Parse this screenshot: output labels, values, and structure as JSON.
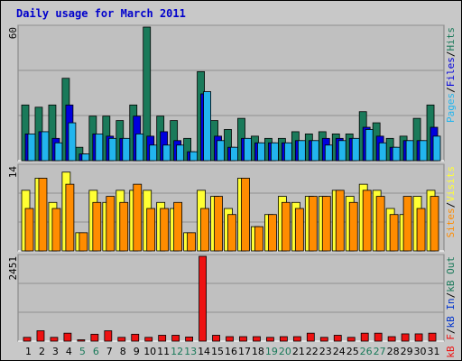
{
  "window": {
    "title": "Daily usage for March 2011"
  },
  "colors": {
    "background": "#c8c8c8",
    "panel": "#c0c0c0",
    "hits": "#1a7a5a",
    "files": "#0000dd",
    "pages": "#22b5ee",
    "visits": "#ffff33",
    "sites": "#ff8c00",
    "kbin": "#0033cc",
    "kbout": "#1a7a5a",
    "kbf": "#ee1111",
    "weekend_label": "#1a7a5a",
    "weekday_label": "#000000",
    "title": "#0000cc"
  },
  "chart_data": [
    {
      "type": "bar",
      "panel": "hits-files-pages",
      "ymax_label": "60",
      "ylim": [
        0,
        60
      ],
      "grid": true,
      "legend": {
        "placement": "right-vertical",
        "parts": [
          "Pages",
          "/",
          "Files",
          "/",
          "Hits"
        ]
      },
      "categories": [
        "1",
        "2",
        "3",
        "4",
        "5",
        "6",
        "7",
        "8",
        "9",
        "10",
        "11",
        "12",
        "13",
        "14",
        "15",
        "16",
        "17",
        "18",
        "19",
        "20",
        "21",
        "22",
        "23",
        "24",
        "25",
        "26",
        "27",
        "28",
        "29",
        "30",
        "31"
      ],
      "weekend_days": [
        "5",
        "6",
        "12",
        "13",
        "19",
        "20",
        "26",
        "27"
      ],
      "series": [
        {
          "name": "Hits",
          "values": [
            25,
            24,
            25,
            37,
            6,
            20,
            20,
            18,
            25,
            60,
            20,
            18,
            10,
            40,
            18,
            14,
            19,
            11,
            10,
            10,
            13,
            12,
            13,
            12,
            12,
            22,
            17,
            10,
            11,
            19,
            25
          ]
        },
        {
          "name": "Files",
          "values": [
            12,
            13,
            10,
            25,
            3,
            12,
            11,
            10,
            20,
            11,
            13,
            9,
            4,
            30,
            11,
            6,
            10,
            8,
            8,
            8,
            9,
            9,
            10,
            10,
            10,
            15,
            11,
            6,
            9,
            9,
            15
          ]
        },
        {
          "name": "Pages",
          "values": [
            12,
            13,
            8,
            17,
            3,
            12,
            10,
            10,
            12,
            7,
            7,
            7,
            4,
            31,
            9,
            6,
            10,
            8,
            8,
            8,
            9,
            9,
            7,
            9,
            10,
            14,
            8,
            6,
            9,
            9,
            11
          ]
        }
      ]
    },
    {
      "type": "bar",
      "panel": "visits-sites",
      "ymax_label": "14",
      "ylim": [
        0,
        14
      ],
      "grid": true,
      "legend": {
        "placement": "right-vertical",
        "parts": [
          "Sites",
          "/",
          "Visits"
        ]
      },
      "categories": [
        "1",
        "2",
        "3",
        "4",
        "5",
        "6",
        "7",
        "8",
        "9",
        "10",
        "11",
        "12",
        "13",
        "14",
        "15",
        "16",
        "17",
        "18",
        "19",
        "20",
        "21",
        "22",
        "23",
        "24",
        "25",
        "26",
        "27",
        "28",
        "29",
        "30",
        "31"
      ],
      "series": [
        {
          "name": "Visits",
          "values": [
            10,
            12,
            8,
            13,
            3,
            10,
            8,
            10,
            10,
            10,
            8,
            7,
            3,
            10,
            9,
            7,
            12,
            4,
            6,
            9,
            8,
            9,
            9,
            10,
            9,
            11,
            10,
            7,
            6,
            9,
            10
          ]
        },
        {
          "name": "Sites",
          "values": [
            7,
            12,
            7,
            11,
            3,
            8,
            9,
            8,
            11,
            7,
            7,
            8,
            3,
            7,
            9,
            6,
            12,
            4,
            6,
            8,
            7,
            9,
            9,
            10,
            8,
            10,
            9,
            6,
            9,
            7,
            9
          ]
        }
      ]
    },
    {
      "type": "bar",
      "panel": "kbf-in-out",
      "ymax_label": "2451",
      "ylim": [
        0,
        2451
      ],
      "grid": true,
      "legend": {
        "placement": "right-vertical",
        "parts": [
          "kB F",
          "/",
          "kB In",
          "/",
          "kB Out"
        ]
      },
      "categories": [
        "1",
        "2",
        "3",
        "4",
        "5",
        "6",
        "7",
        "8",
        "9",
        "10",
        "11",
        "12",
        "13",
        "14",
        "15",
        "16",
        "17",
        "18",
        "19",
        "20",
        "21",
        "22",
        "23",
        "24",
        "25",
        "26",
        "27",
        "28",
        "29",
        "30",
        "31"
      ],
      "series": [
        {
          "name": "kB F",
          "values": [
            110,
            300,
            110,
            230,
            40,
            200,
            300,
            110,
            200,
            110,
            170,
            170,
            120,
            2451,
            170,
            130,
            130,
            130,
            110,
            130,
            130,
            230,
            110,
            170,
            110,
            230,
            230,
            130,
            210,
            210,
            230
          ]
        }
      ]
    }
  ]
}
